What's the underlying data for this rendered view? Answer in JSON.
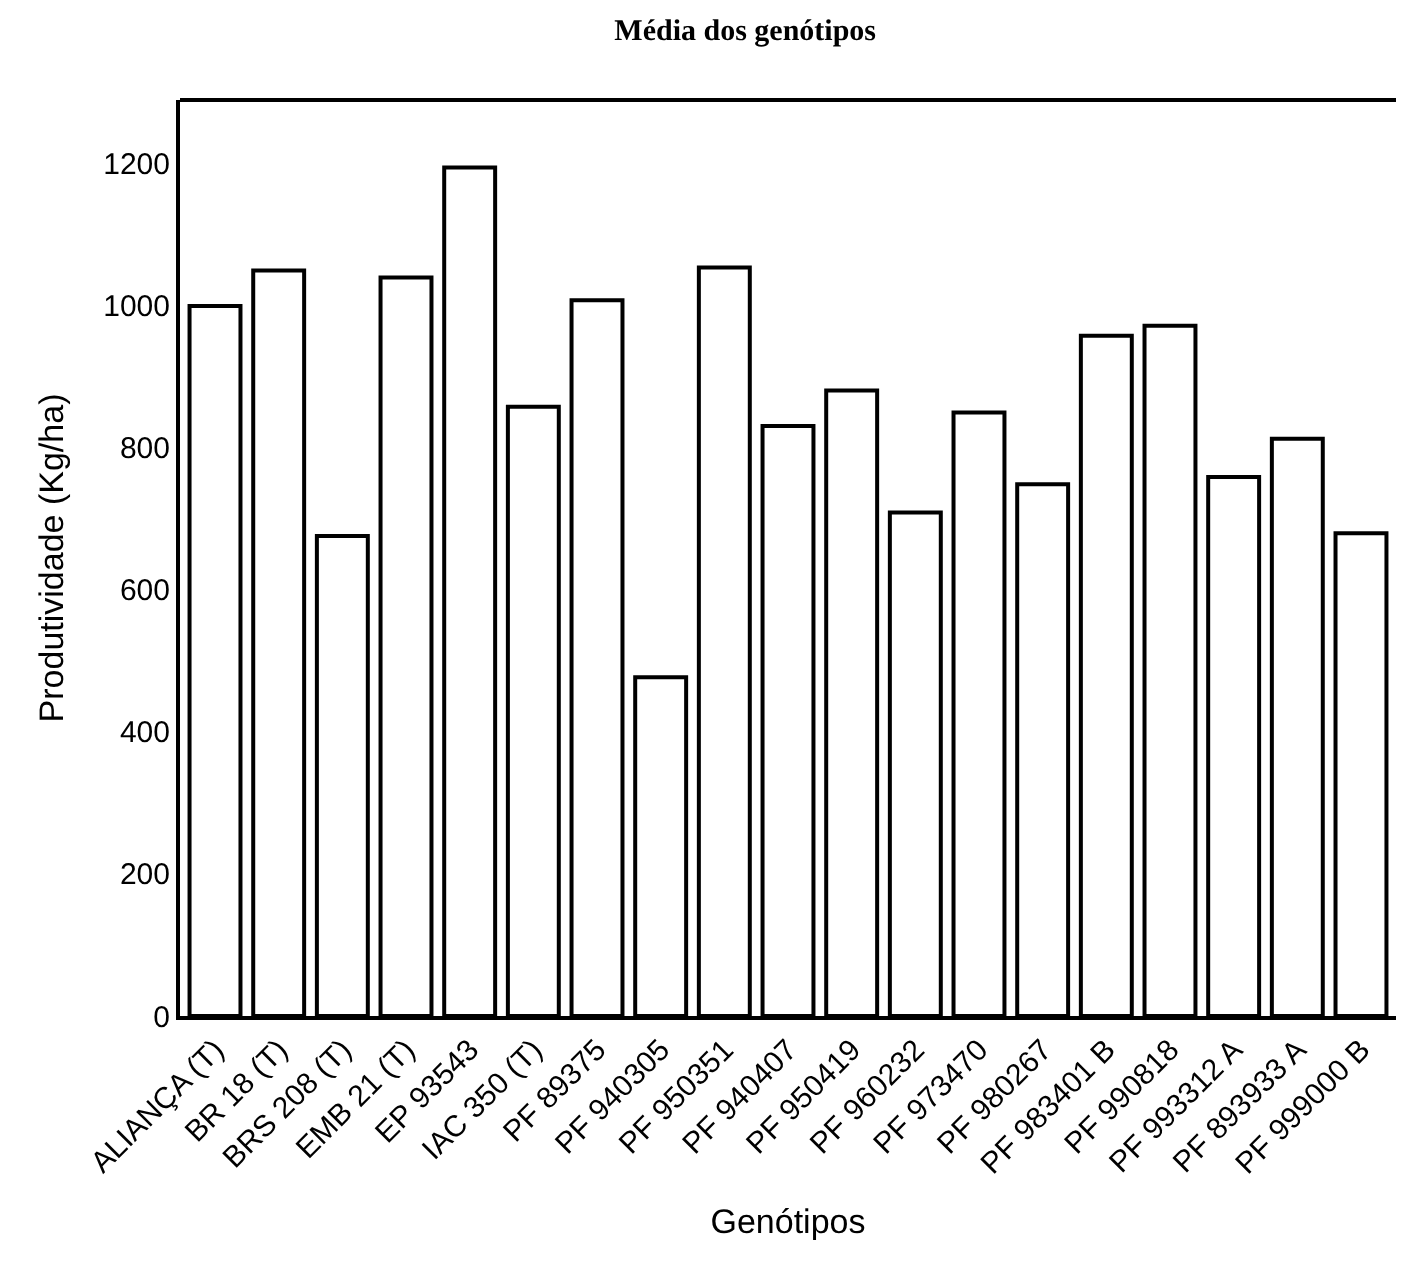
{
  "chart_data": {
    "type": "bar",
    "title": "Média dos genótipos",
    "xlabel": "Genótipos",
    "ylabel": "Produtividade (Kg/ha)",
    "categories": [
      "ALIANÇA (T)",
      "BR 18 (T)",
      "BRS 208 (T)",
      "EMB 21 (T)",
      "EP 93543",
      "IAC 350 (T)",
      "PF 89375",
      "PF 940305",
      "PF 950351",
      "PF 940407",
      "PF 950419",
      "PF 960232",
      "PF 973470",
      "PF 980267",
      "PF 983401 B",
      "PF 990818",
      "PF 993312 A",
      "PF 893933 A",
      "PF 999000 B"
    ],
    "values": [
      1000,
      1050,
      676,
      1040,
      1195,
      858,
      1008,
      477,
      1054,
      831,
      881,
      709,
      850,
      749,
      958,
      972,
      759,
      813,
      680
    ],
    "color": "#ffffff",
    "ylim": [
      0,
      1290
    ],
    "yticks": [
      0,
      200,
      400,
      600,
      800,
      1000,
      1200
    ]
  }
}
